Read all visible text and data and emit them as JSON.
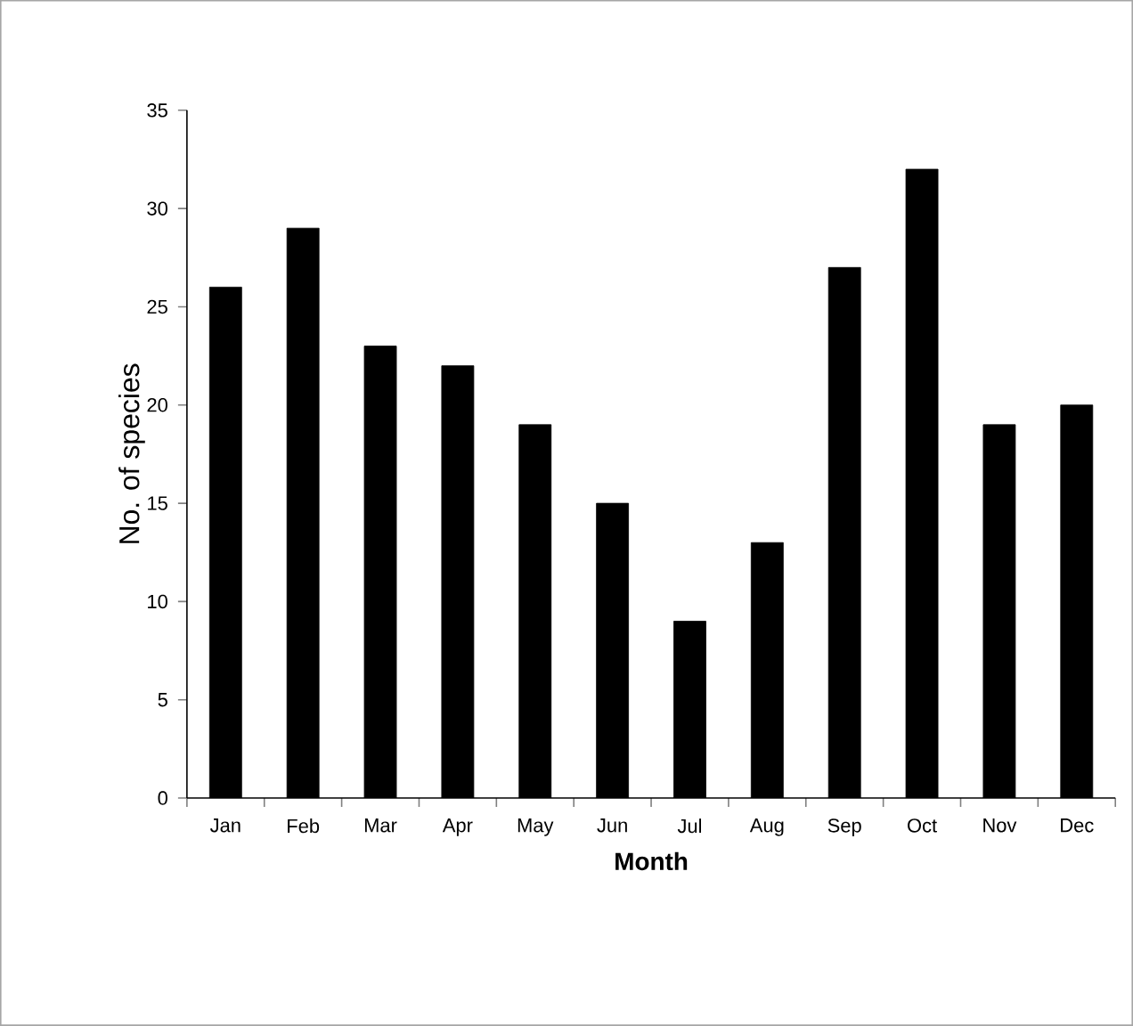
{
  "chart_data": {
    "type": "bar",
    "xlabel": "Month",
    "ylabel": "No. of species",
    "categories": [
      "Jan",
      "Feb",
      "Mar",
      "Apr",
      "May",
      "Jun",
      "Jul",
      "Aug",
      "Sep",
      "Oct",
      "Nov",
      "Dec"
    ],
    "values": [
      26,
      29,
      23,
      22,
      19,
      15,
      9,
      13,
      27,
      32,
      19,
      20
    ],
    "color": "#000000",
    "ylim": [
      0,
      35
    ],
    "yticks": [
      0,
      5,
      10,
      15,
      20,
      25,
      30,
      35
    ]
  }
}
